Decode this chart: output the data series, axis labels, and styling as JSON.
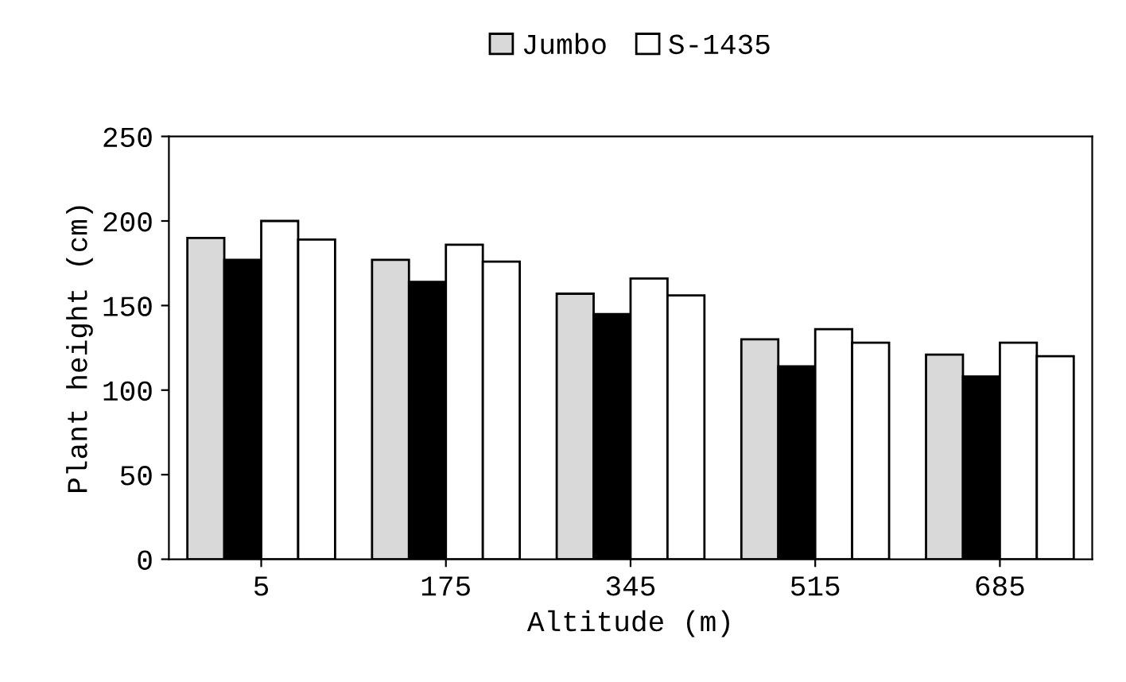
{
  "chart_data": {
    "type": "bar",
    "xlabel": "Altitude (m)",
    "ylabel": "Plant height (cm)",
    "categories": [
      "5",
      "175",
      "345",
      "515",
      "685"
    ],
    "series": [
      {
        "name": "Jumbo",
        "color": "#d9d9d9",
        "values": [
          190,
          177,
          157,
          130,
          121
        ]
      },
      {
        "color": "#000000",
        "values": [
          177,
          164,
          145,
          114,
          108
        ]
      },
      {
        "color": "#ffffff",
        "values": [
          200,
          186,
          166,
          136,
          128
        ]
      },
      {
        "name": "S-1435",
        "color": "#ffffff",
        "values": [
          189,
          176,
          156,
          128,
          120
        ]
      }
    ],
    "ylim": [
      0,
      250
    ],
    "yticks": [
      0,
      50,
      100,
      150,
      200,
      250
    ],
    "grid": false,
    "legend": "top"
  }
}
